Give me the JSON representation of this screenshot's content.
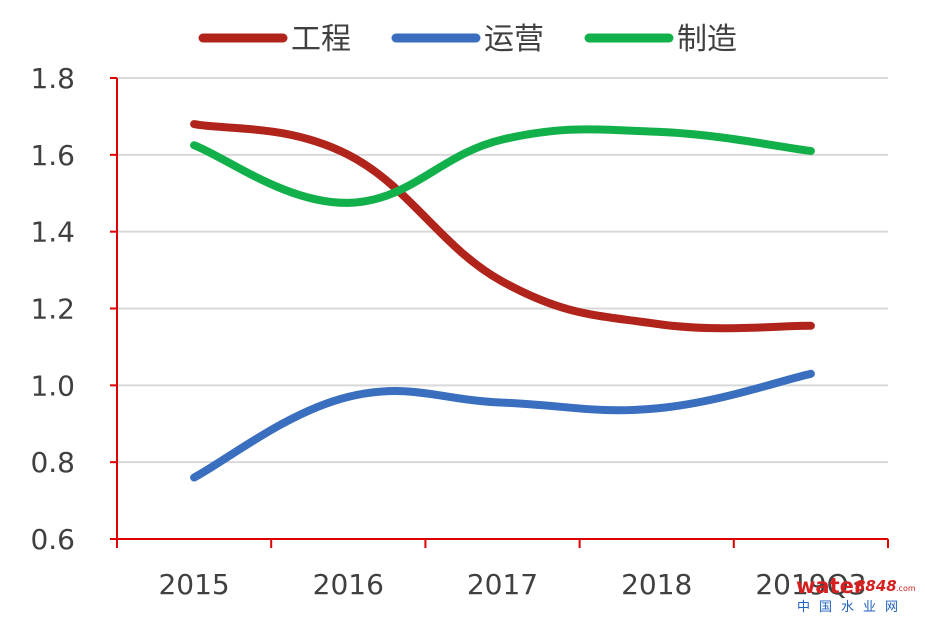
{
  "chart_data": {
    "type": "line",
    "title": "",
    "xlabel": "",
    "ylabel": "",
    "categories": [
      "2015",
      "2016",
      "2017",
      "2018",
      "2019Q3"
    ],
    "series": [
      {
        "name": "工程",
        "color": "#B0241C",
        "values": [
          1.68,
          1.6,
          1.27,
          1.16,
          1.155
        ]
      },
      {
        "name": "运营",
        "color": "#3A6EBF",
        "values": [
          0.76,
          0.97,
          0.955,
          0.94,
          1.03
        ]
      },
      {
        "name": "制造",
        "color": "#12B04A",
        "values": [
          1.625,
          1.475,
          1.64,
          1.66,
          1.61
        ]
      }
    ],
    "ylim": [
      0.6,
      1.8
    ],
    "yticks": [
      "0.6",
      "0.8",
      "1.0",
      "1.2",
      "1.4",
      "1.6",
      "1.8"
    ],
    "ytick_values": [
      0.6,
      0.8,
      1.0,
      1.2,
      1.4,
      1.6,
      1.8
    ],
    "grid": true,
    "legend_position": "top",
    "axis_color": "#E00000",
    "grid_color": "#D9D9D9"
  },
  "watermark": {
    "brand_main": "water",
    "brand_num": "8848",
    "brand_suffix": ".com",
    "brand_cn": "中国水业网"
  }
}
